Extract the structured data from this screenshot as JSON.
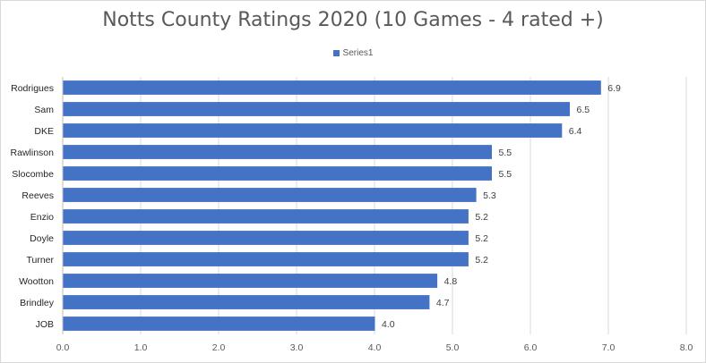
{
  "chart_data": {
    "type": "bar",
    "orientation": "horizontal",
    "title": "Notts County Ratings 2020 (10 Games - 4 rated +)",
    "legend": {
      "position": "top",
      "entries": [
        "Series1"
      ]
    },
    "series": [
      {
        "name": "Series1",
        "color": "#4472c4",
        "categories": [
          "Rodrigues",
          "Sam",
          "DKE",
          "Rawlinson",
          "Slocombe",
          "Reeves",
          "Enzio",
          "Doyle",
          "Turner",
          "Wootton",
          "Brindley",
          "JOB"
        ],
        "values": [
          6.9,
          6.5,
          6.4,
          5.5,
          5.5,
          5.3,
          5.2,
          5.2,
          5.2,
          4.8,
          4.7,
          4.0
        ],
        "labels": [
          "6.9",
          "6.5",
          "6.4",
          "5.5",
          "5.5",
          "5.3",
          "5.2",
          "5.2",
          "5.2",
          "4.8",
          "4.7",
          "4.0"
        ]
      }
    ],
    "xlim": [
      0,
      8
    ],
    "xticks": [
      "0.0",
      "1.0",
      "2.0",
      "3.0",
      "4.0",
      "5.0",
      "6.0",
      "7.0",
      "8.0"
    ],
    "grid": "vertical"
  }
}
